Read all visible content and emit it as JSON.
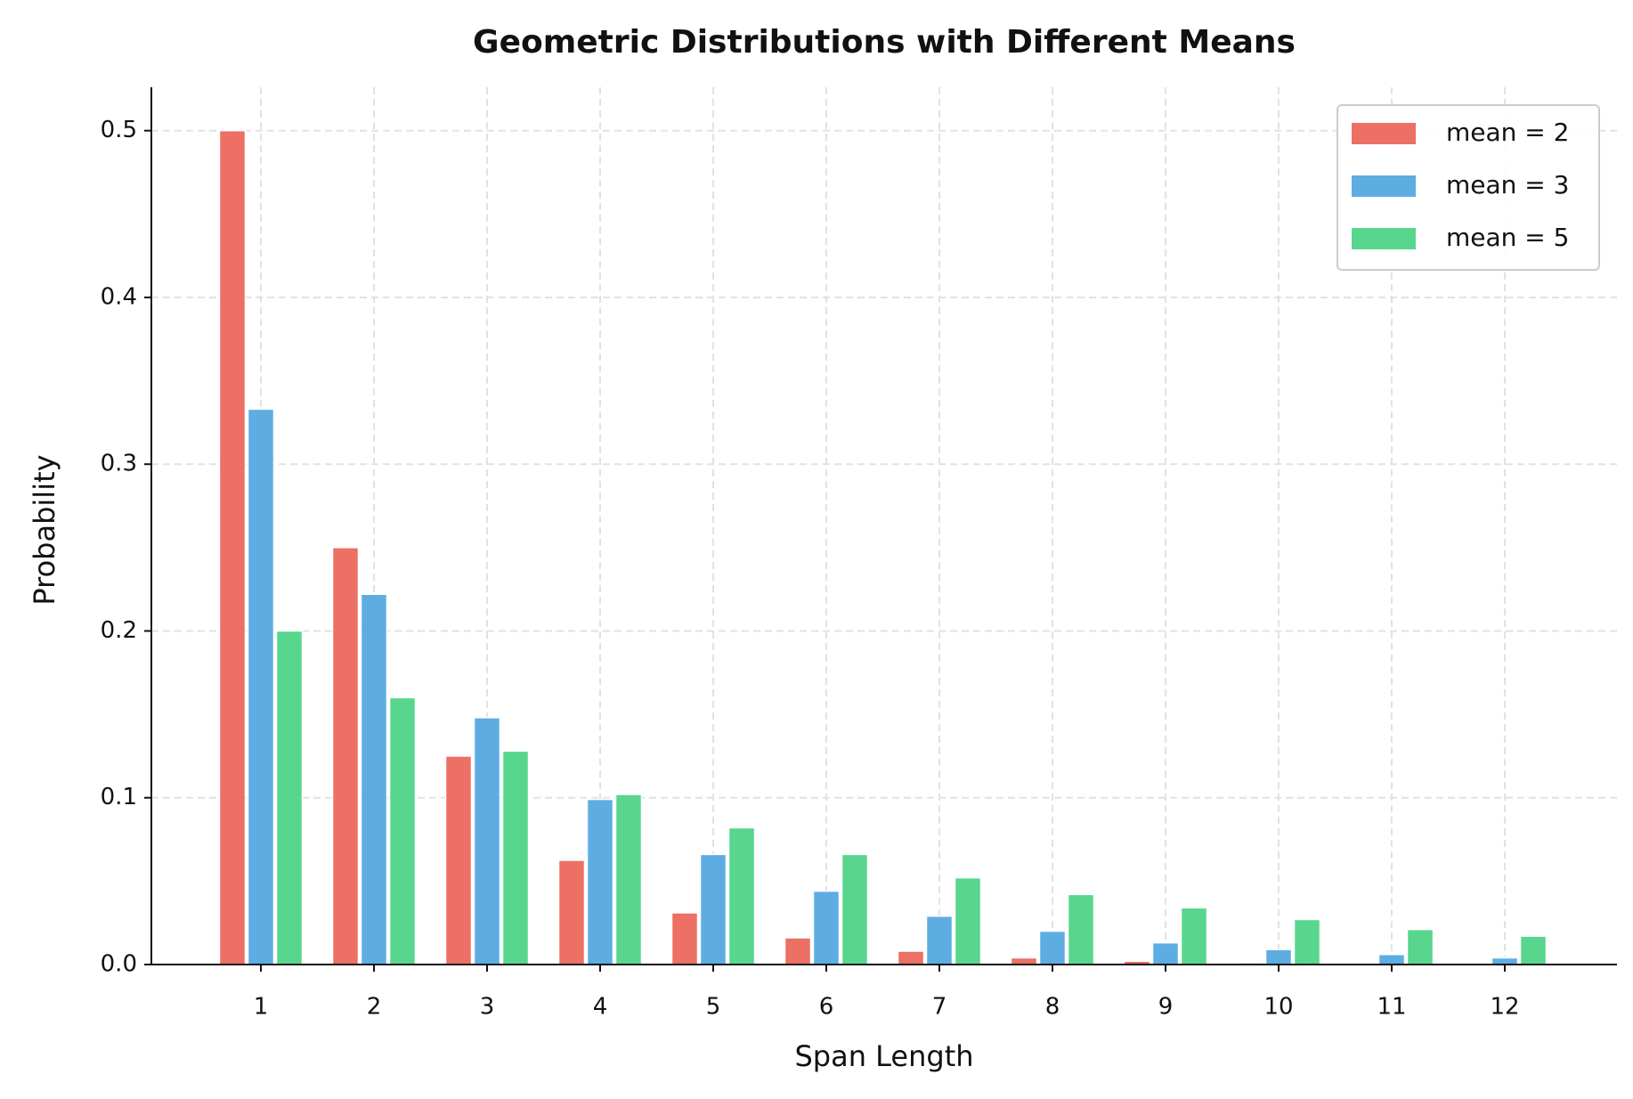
{
  "chart_data": {
    "type": "bar",
    "title": "Geometric Distributions with Different Means",
    "x_label": "Span Length",
    "y_label": "Probability",
    "categories": [
      "1",
      "2",
      "3",
      "4",
      "5",
      "6",
      "7",
      "8",
      "9",
      "10",
      "11",
      "12"
    ],
    "series": [
      {
        "name": "mean = 2",
        "color": "#ec7063",
        "values": [
          0.5,
          0.25,
          0.125,
          0.0625,
          0.031,
          0.016,
          0.008,
          0.004,
          0.002,
          0.001,
          0.0005,
          0.0002
        ]
      },
      {
        "name": "mean = 3",
        "color": "#5dade2",
        "values": [
          0.333,
          0.222,
          0.148,
          0.099,
          0.066,
          0.044,
          0.029,
          0.02,
          0.013,
          0.009,
          0.006,
          0.004
        ]
      },
      {
        "name": "mean = 5",
        "color": "#58d68d",
        "values": [
          0.2,
          0.16,
          0.128,
          0.102,
          0.082,
          0.066,
          0.052,
          0.042,
          0.034,
          0.027,
          0.021,
          0.017
        ]
      }
    ],
    "ylim": [
      0,
      0.526
    ],
    "yticks": [
      {
        "value": 0,
        "label": "0.0"
      },
      0.1,
      0.2,
      0.3,
      0.4,
      0.5
    ],
    "grid": true,
    "legend": "upper right"
  }
}
